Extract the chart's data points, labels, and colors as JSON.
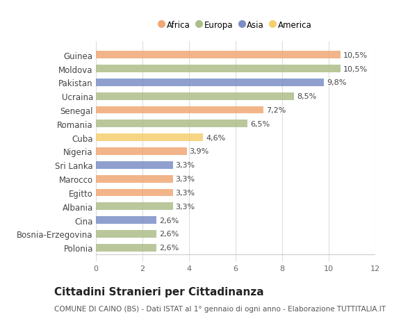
{
  "countries": [
    "Guinea",
    "Moldova",
    "Pakistan",
    "Ucraina",
    "Senegal",
    "Romania",
    "Cuba",
    "Nigeria",
    "Sri Lanka",
    "Marocco",
    "Egitto",
    "Albania",
    "Cina",
    "Bosnia-Erzegovina",
    "Polonia"
  ],
  "values": [
    10.5,
    10.5,
    9.8,
    8.5,
    7.2,
    6.5,
    4.6,
    3.9,
    3.3,
    3.3,
    3.3,
    3.3,
    2.6,
    2.6,
    2.6
  ],
  "labels": [
    "10,5%",
    "10,5%",
    "9,8%",
    "8,5%",
    "7,2%",
    "6,5%",
    "4,6%",
    "3,9%",
    "3,3%",
    "3,3%",
    "3,3%",
    "3,3%",
    "2,6%",
    "2,6%",
    "2,6%"
  ],
  "continents": [
    "Africa",
    "Europa",
    "Asia",
    "Europa",
    "Africa",
    "Europa",
    "America",
    "Africa",
    "Asia",
    "Africa",
    "Africa",
    "Europa",
    "Asia",
    "Europa",
    "Europa"
  ],
  "colors": {
    "Africa": "#F0A876",
    "Europa": "#ADBE8A",
    "Asia": "#7B8FC7",
    "America": "#F5CE6E"
  },
  "legend_order": [
    "Africa",
    "Europa",
    "Asia",
    "America"
  ],
  "xlim": [
    0,
    12
  ],
  "xticks": [
    0,
    2,
    4,
    6,
    8,
    10,
    12
  ],
  "title": "Cittadini Stranieri per Cittadinanza",
  "subtitle": "COMUNE DI CAINO (BS) - Dati ISTAT al 1° gennaio di ogni anno - Elaborazione TUTTITALIA.IT",
  "bg_color": "#ffffff",
  "bar_height": 0.55,
  "label_fontsize": 8,
  "ylabel_fontsize": 8.5,
  "title_fontsize": 11,
  "subtitle_fontsize": 7.5
}
